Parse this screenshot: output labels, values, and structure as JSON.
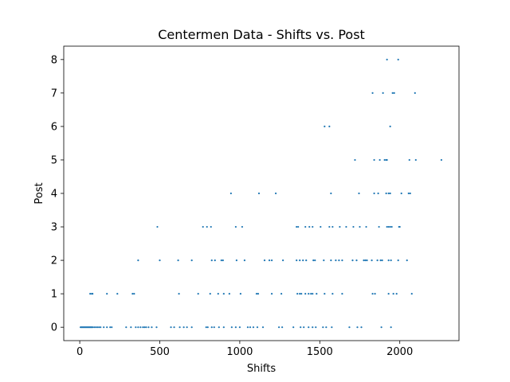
{
  "chart_data": {
    "type": "scatter",
    "title": "Centermen Data - Shifts vs. Post",
    "xlabel": "Shifts",
    "ylabel": "Post",
    "xlim": [
      -100,
      2370
    ],
    "ylim": [
      -0.4,
      8.4
    ],
    "xticks": [
      0,
      500,
      1000,
      1500,
      2000
    ],
    "yticks": [
      0,
      1,
      2,
      3,
      4,
      5,
      6,
      7,
      8
    ],
    "grid": false,
    "marker_color": "#1f77b4",
    "points": [
      [
        5,
        0
      ],
      [
        10,
        0
      ],
      [
        15,
        0
      ],
      [
        20,
        0
      ],
      [
        25,
        0
      ],
      [
        30,
        0
      ],
      [
        35,
        0
      ],
      [
        40,
        0
      ],
      [
        45,
        0
      ],
      [
        50,
        0
      ],
      [
        55,
        0
      ],
      [
        60,
        0
      ],
      [
        65,
        0
      ],
      [
        70,
        0
      ],
      [
        75,
        0
      ],
      [
        80,
        0
      ],
      [
        90,
        0
      ],
      [
        100,
        0
      ],
      [
        110,
        0
      ],
      [
        120,
        0
      ],
      [
        130,
        0
      ],
      [
        150,
        0
      ],
      [
        170,
        0
      ],
      [
        190,
        0
      ],
      [
        200,
        0
      ],
      [
        290,
        0
      ],
      [
        320,
        0
      ],
      [
        350,
        0
      ],
      [
        365,
        0
      ],
      [
        380,
        0
      ],
      [
        395,
        0
      ],
      [
        405,
        0
      ],
      [
        415,
        0
      ],
      [
        430,
        0
      ],
      [
        450,
        0
      ],
      [
        480,
        0
      ],
      [
        570,
        0
      ],
      [
        590,
        0
      ],
      [
        625,
        0
      ],
      [
        650,
        0
      ],
      [
        670,
        0
      ],
      [
        700,
        0
      ],
      [
        790,
        0
      ],
      [
        800,
        0
      ],
      [
        825,
        0
      ],
      [
        840,
        0
      ],
      [
        870,
        0
      ],
      [
        900,
        0
      ],
      [
        950,
        0
      ],
      [
        975,
        0
      ],
      [
        1000,
        0
      ],
      [
        1050,
        0
      ],
      [
        1065,
        0
      ],
      [
        1085,
        0
      ],
      [
        1110,
        0
      ],
      [
        1145,
        0
      ],
      [
        1245,
        0
      ],
      [
        1265,
        0
      ],
      [
        1335,
        0
      ],
      [
        1380,
        0
      ],
      [
        1400,
        0
      ],
      [
        1430,
        0
      ],
      [
        1455,
        0
      ],
      [
        1475,
        0
      ],
      [
        1520,
        0
      ],
      [
        1540,
        0
      ],
      [
        1575,
        0
      ],
      [
        1685,
        0
      ],
      [
        1735,
        0
      ],
      [
        1760,
        0
      ],
      [
        1885,
        0
      ],
      [
        1945,
        0
      ],
      [
        65,
        1
      ],
      [
        75,
        1
      ],
      [
        80,
        1
      ],
      [
        170,
        1
      ],
      [
        235,
        1
      ],
      [
        330,
        1
      ],
      [
        340,
        1
      ],
      [
        620,
        1
      ],
      [
        740,
        1
      ],
      [
        815,
        1
      ],
      [
        865,
        1
      ],
      [
        900,
        1
      ],
      [
        935,
        1
      ],
      [
        1005,
        1
      ],
      [
        1105,
        1
      ],
      [
        1115,
        1
      ],
      [
        1200,
        1
      ],
      [
        1260,
        1
      ],
      [
        1360,
        1
      ],
      [
        1375,
        1
      ],
      [
        1385,
        1
      ],
      [
        1410,
        1
      ],
      [
        1430,
        1
      ],
      [
        1445,
        1
      ],
      [
        1455,
        1
      ],
      [
        1480,
        1
      ],
      [
        1530,
        1
      ],
      [
        1580,
        1
      ],
      [
        1640,
        1
      ],
      [
        1830,
        1
      ],
      [
        1845,
        1
      ],
      [
        1930,
        1
      ],
      [
        1960,
        1
      ],
      [
        1980,
        1
      ],
      [
        2075,
        1
      ],
      [
        365,
        2
      ],
      [
        500,
        2
      ],
      [
        615,
        2
      ],
      [
        700,
        2
      ],
      [
        825,
        2
      ],
      [
        845,
        2
      ],
      [
        885,
        2
      ],
      [
        895,
        2
      ],
      [
        980,
        2
      ],
      [
        1030,
        2
      ],
      [
        1155,
        2
      ],
      [
        1185,
        2
      ],
      [
        1200,
        2
      ],
      [
        1270,
        2
      ],
      [
        1355,
        2
      ],
      [
        1375,
        2
      ],
      [
        1395,
        2
      ],
      [
        1415,
        2
      ],
      [
        1460,
        2
      ],
      [
        1470,
        2
      ],
      [
        1525,
        2
      ],
      [
        1570,
        2
      ],
      [
        1600,
        2
      ],
      [
        1620,
        2
      ],
      [
        1640,
        2
      ],
      [
        1705,
        2
      ],
      [
        1730,
        2
      ],
      [
        1775,
        2
      ],
      [
        1785,
        2
      ],
      [
        1795,
        2
      ],
      [
        1825,
        2
      ],
      [
        1860,
        2
      ],
      [
        1880,
        2
      ],
      [
        1890,
        2
      ],
      [
        1930,
        2
      ],
      [
        1945,
        2
      ],
      [
        1990,
        2
      ],
      [
        2045,
        2
      ],
      [
        485,
        3
      ],
      [
        770,
        3
      ],
      [
        795,
        3
      ],
      [
        820,
        3
      ],
      [
        975,
        3
      ],
      [
        1015,
        3
      ],
      [
        1355,
        3
      ],
      [
        1365,
        3
      ],
      [
        1410,
        3
      ],
      [
        1435,
        3
      ],
      [
        1455,
        3
      ],
      [
        1505,
        3
      ],
      [
        1560,
        3
      ],
      [
        1580,
        3
      ],
      [
        1625,
        3
      ],
      [
        1665,
        3
      ],
      [
        1710,
        3
      ],
      [
        1750,
        3
      ],
      [
        1790,
        3
      ],
      [
        1870,
        3
      ],
      [
        1920,
        3
      ],
      [
        1930,
        3
      ],
      [
        1940,
        3
      ],
      [
        1950,
        3
      ],
      [
        1995,
        3
      ],
      [
        2000,
        3
      ],
      [
        945,
        4
      ],
      [
        1120,
        4
      ],
      [
        1225,
        4
      ],
      [
        1570,
        4
      ],
      [
        1745,
        4
      ],
      [
        1840,
        4
      ],
      [
        1865,
        4
      ],
      [
        1915,
        4
      ],
      [
        1930,
        4
      ],
      [
        1940,
        4
      ],
      [
        2010,
        4
      ],
      [
        2055,
        4
      ],
      [
        2065,
        4
      ],
      [
        1720,
        5
      ],
      [
        1840,
        5
      ],
      [
        1875,
        5
      ],
      [
        1905,
        5
      ],
      [
        1915,
        5
      ],
      [
        1920,
        5
      ],
      [
        2060,
        5
      ],
      [
        2100,
        5
      ],
      [
        2260,
        5
      ],
      [
        1530,
        6
      ],
      [
        1560,
        6
      ],
      [
        1940,
        6
      ],
      [
        1830,
        7
      ],
      [
        1895,
        7
      ],
      [
        1955,
        7
      ],
      [
        1965,
        7
      ],
      [
        2095,
        7
      ],
      [
        1920,
        8
      ],
      [
        1990,
        8
      ]
    ]
  }
}
